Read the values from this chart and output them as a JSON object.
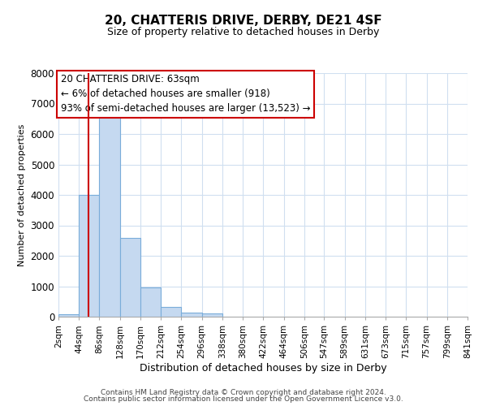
{
  "title": "20, CHATTERIS DRIVE, DERBY, DE21 4SF",
  "subtitle": "Size of property relative to detached houses in Derby",
  "xlabel": "Distribution of detached houses by size in Derby",
  "ylabel": "Number of detached properties",
  "footer_line1": "Contains HM Land Registry data © Crown copyright and database right 2024.",
  "footer_line2": "Contains public sector information licensed under the Open Government Licence v3.0.",
  "bin_edges": [
    2,
    44,
    86,
    128,
    170,
    212,
    254,
    296,
    338,
    380,
    422,
    464,
    506,
    547,
    589,
    631,
    673,
    715,
    757,
    799,
    841
  ],
  "bar_heights": [
    70,
    4000,
    6550,
    2600,
    950,
    325,
    125,
    100,
    0,
    0,
    0,
    0,
    0,
    0,
    0,
    0,
    0,
    0,
    0,
    0
  ],
  "bar_color": "#c5d9f0",
  "bar_edge_color": "#7aadda",
  "property_line_x": 63,
  "property_line_color": "#cc0000",
  "ylim": [
    0,
    8000
  ],
  "annotation_line1": "20 CHATTERIS DRIVE: 63sqm",
  "annotation_line2": "← 6% of detached houses are smaller (918)",
  "annotation_line3": "93% of semi-detached houses are larger (13,523) →",
  "background_color": "#ffffff",
  "grid_color": "#d0dff0",
  "title_fontsize": 11,
  "subtitle_fontsize": 9,
  "xlabel_fontsize": 9,
  "ylabel_fontsize": 8,
  "tick_label_size": 7.5,
  "footer_fontsize": 6.5,
  "footer_color": "#444444"
}
